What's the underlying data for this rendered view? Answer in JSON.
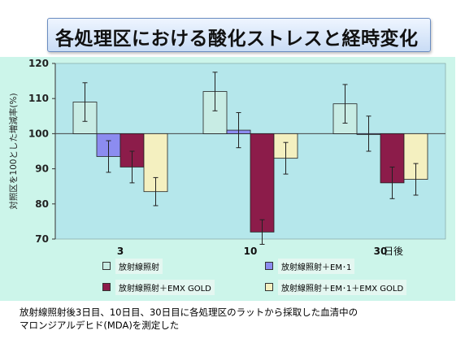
{
  "title": "各処理区における酸化ストレスと経時変化",
  "caption_lines": [
    "放射線照射後3日目、10日目、30日目に各処理区のラットから採取した血清中の",
    "マロンジアルデヒド(MDA)を測定した"
  ],
  "colors": {
    "panel": "#ccf5ea",
    "plot_area": "#b5e7eb"
  },
  "chart_data": {
    "type": "bar",
    "title": "",
    "categories": [
      "3",
      "10",
      "30"
    ],
    "xlabel": "日後",
    "ylabel": "対照区を100とした増減率(%)",
    "ylim": [
      70,
      120
    ],
    "yticks": [
      70,
      80,
      90,
      100,
      110,
      120
    ],
    "baseline": 100,
    "grid": false,
    "legend_position": "bottom",
    "series": [
      {
        "name": "放射線照射",
        "color": "#c8ece4",
        "values": [
          109,
          112,
          108.5
        ],
        "errors": [
          5.5,
          5.5,
          5.5
        ]
      },
      {
        "name": "放射線照射＋EM･1",
        "color": "#8c8cf0",
        "values": [
          93.5,
          101,
          100
        ],
        "errors": [
          4.5,
          5,
          5
        ]
      },
      {
        "name": "放射線照射＋EMX GOLD",
        "color": "#8c1c4a",
        "values": [
          90.5,
          72,
          86
        ],
        "errors": [
          4.5,
          3.5,
          4.5
        ]
      },
      {
        "name": "放射線照射＋EM･1＋EMX GOLD",
        "color": "#f4f0c0",
        "values": [
          83.5,
          93,
          87
        ],
        "errors": [
          4,
          4.5,
          4.5
        ]
      }
    ]
  }
}
